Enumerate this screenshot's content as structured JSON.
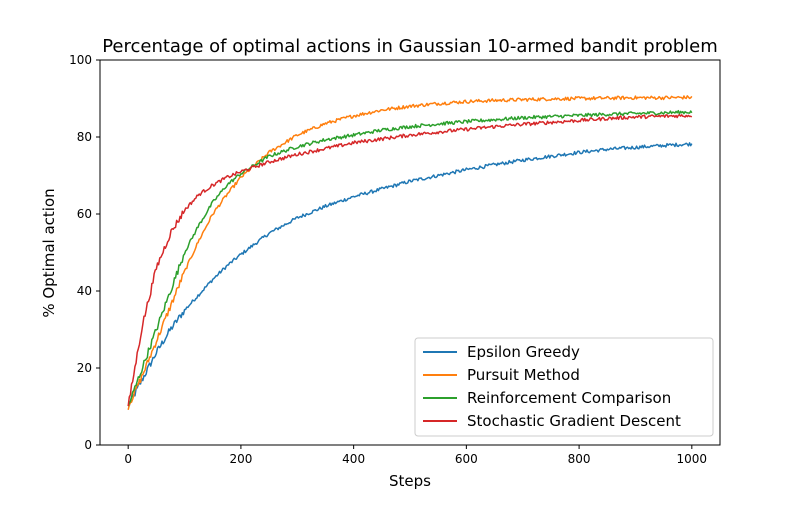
{
  "chart_data": {
    "type": "line",
    "title": "Percentage of optimal actions in Gaussian 10-armed bandit problem",
    "xlabel": "Steps",
    "ylabel": "% Optimal action",
    "xlim": [
      -50,
      1050
    ],
    "ylim": [
      0,
      100
    ],
    "xticks": [
      0,
      200,
      400,
      600,
      800,
      1000
    ],
    "yticks": [
      0,
      20,
      40,
      60,
      80,
      100
    ],
    "legend_position": "lower-right",
    "grid": false,
    "x": [
      0,
      25,
      50,
      75,
      100,
      125,
      150,
      175,
      200,
      250,
      300,
      350,
      400,
      450,
      500,
      550,
      600,
      650,
      700,
      750,
      800,
      850,
      900,
      950,
      1000
    ],
    "series": [
      {
        "name": "Epsilon Greedy",
        "color": "#1f77b4",
        "values": [
          10,
          17,
          24,
          30,
          35,
          39,
          43,
          46.5,
          49.5,
          55,
          59,
          62,
          64.5,
          66.5,
          68.5,
          70,
          71.5,
          72.8,
          74,
          75,
          76,
          76.8,
          77.3,
          77.8,
          78.2
        ]
      },
      {
        "name": "Pursuit Method",
        "color": "#ff7f0e",
        "values": [
          10,
          18,
          27,
          36,
          45,
          53,
          60,
          65,
          69.5,
          76,
          80.5,
          83.5,
          85.5,
          87,
          88,
          88.7,
          89.2,
          89.5,
          89.7,
          89.9,
          90,
          90.1,
          90.2,
          90.2,
          90.3
        ]
      },
      {
        "name": "Reinforcement Comparison",
        "color": "#2ca02c",
        "values": [
          10,
          20,
          30,
          40,
          50,
          57,
          63,
          67.5,
          70.5,
          75,
          77.5,
          79.3,
          80.5,
          81.8,
          82.7,
          83.4,
          84,
          84.5,
          85,
          85.3,
          85.6,
          85.9,
          86.1,
          86.3,
          86.5
        ]
      },
      {
        "name": "Stochastic Gradient Descent",
        "color": "#d62728",
        "values": [
          10,
          31,
          46,
          55,
          61,
          65,
          67.5,
          69.5,
          71,
          73.5,
          75.5,
          77,
          78.5,
          79.5,
          80.5,
          81.3,
          82,
          82.7,
          83.3,
          83.8,
          84.3,
          84.8,
          85.2,
          85.4,
          85.6
        ]
      }
    ]
  }
}
